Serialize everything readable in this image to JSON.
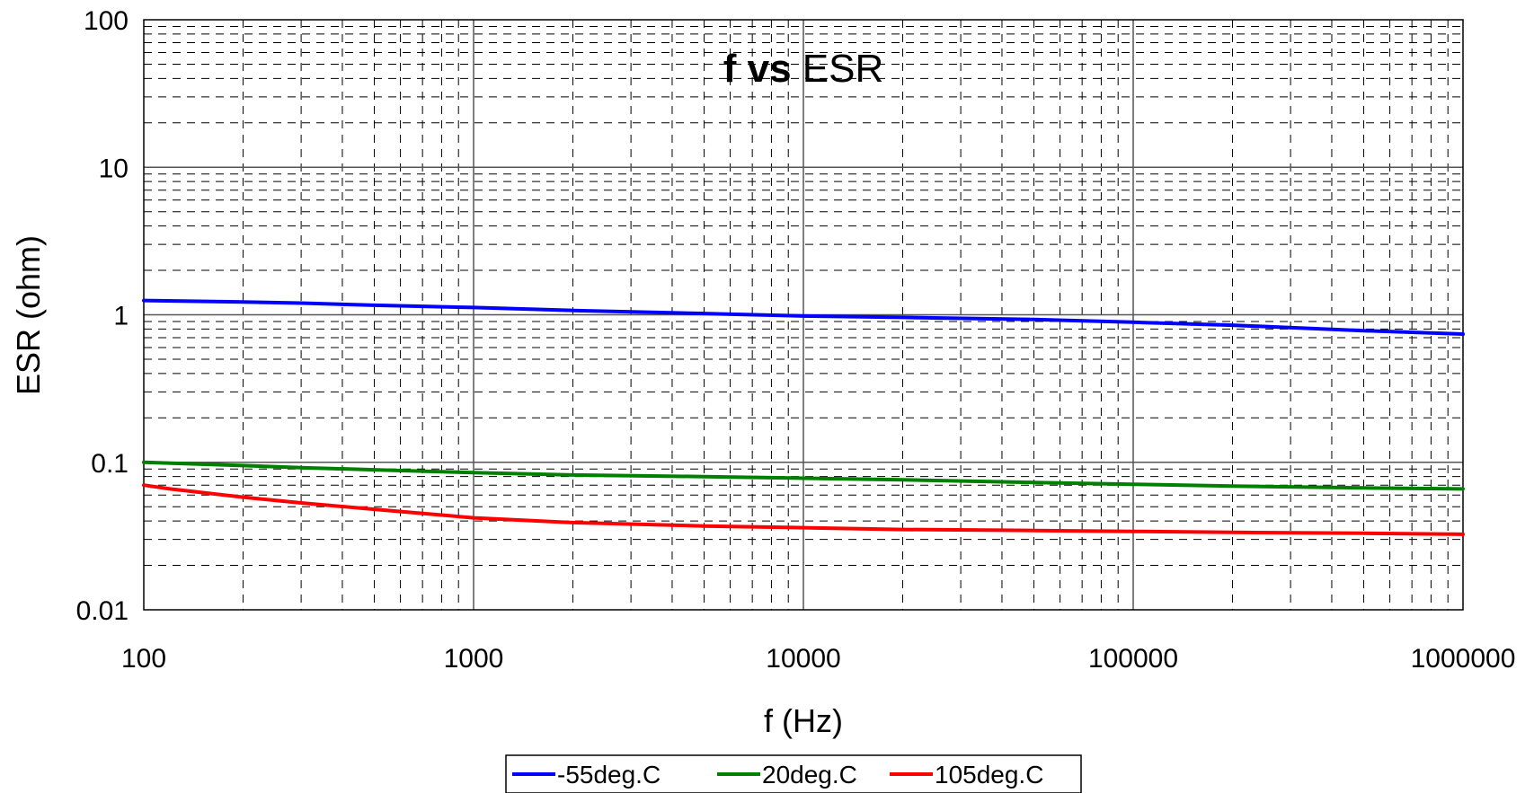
{
  "chart_data": {
    "type": "line",
    "title_bold": "f vs",
    "title_rest": "ESR",
    "xlabel": "f (Hz)",
    "ylabel": "ESR (ohm)",
    "xscale": "log",
    "yscale": "log",
    "xlim": [
      100,
      1000000
    ],
    "ylim": [
      0.01,
      100
    ],
    "x_ticks": [
      100,
      1000,
      10000,
      100000,
      1000000
    ],
    "x_tick_labels": [
      "100",
      "1000",
      "10000",
      "100000",
      "1000000"
    ],
    "y_ticks": [
      0.01,
      0.1,
      1,
      10,
      100
    ],
    "y_tick_labels": [
      "0.01",
      "0.1",
      "1",
      "10",
      "100"
    ],
    "grid": {
      "major": "solid",
      "minor": "dashed"
    },
    "legend_position": "bottom-center",
    "series": [
      {
        "name": "-55deg.C",
        "color": "#0000ff",
        "x": [
          100,
          200,
          300,
          500,
          1000,
          2000,
          5000,
          10000,
          20000,
          50000,
          100000,
          200000,
          500000,
          1000000
        ],
        "y": [
          1.25,
          1.22,
          1.2,
          1.16,
          1.12,
          1.07,
          1.02,
          0.98,
          0.96,
          0.93,
          0.89,
          0.85,
          0.78,
          0.74
        ]
      },
      {
        "name": "20deg.C",
        "color": "#008000",
        "x": [
          100,
          200,
          300,
          500,
          1000,
          2000,
          5000,
          10000,
          20000,
          50000,
          100000,
          200000,
          500000,
          1000000
        ],
        "y": [
          0.1,
          0.095,
          0.092,
          0.089,
          0.085,
          0.082,
          0.08,
          0.078,
          0.076,
          0.073,
          0.071,
          0.069,
          0.067,
          0.066
        ]
      },
      {
        "name": "105deg.C",
        "color": "#ff0000",
        "x": [
          100,
          120,
          200,
          300,
          500,
          1000,
          2000,
          5000,
          10000,
          20000,
          50000,
          100000,
          200000,
          500000,
          1000000
        ],
        "y": [
          0.07,
          0.066,
          0.058,
          0.053,
          0.048,
          0.042,
          0.039,
          0.037,
          0.036,
          0.035,
          0.0345,
          0.034,
          0.0335,
          0.033,
          0.0325
        ]
      }
    ]
  }
}
